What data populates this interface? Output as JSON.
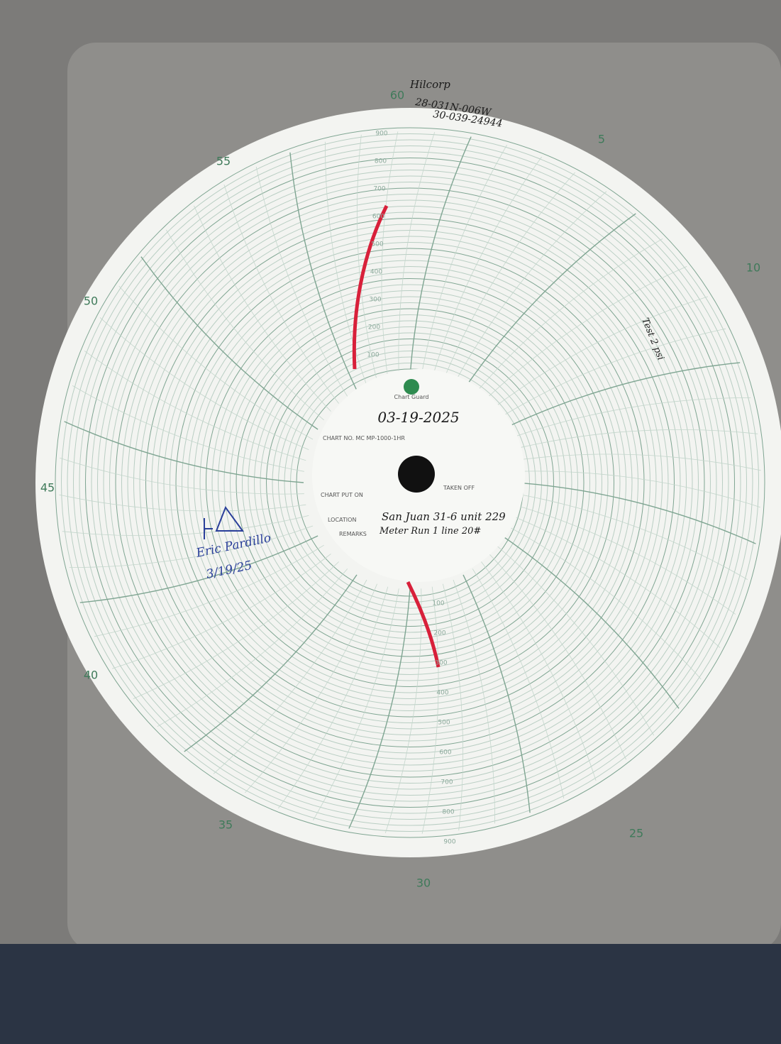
{
  "chart_paper": {
    "rim_labels": [
      "60",
      "5",
      "10",
      "25",
      "30",
      "35",
      "40",
      "45",
      "50",
      "55"
    ],
    "scale_labels": [
      "100",
      "200",
      "300",
      "400",
      "500",
      "600",
      "700",
      "800",
      "900"
    ],
    "header_notes": [
      "Hilcorp",
      "28-031N-006W",
      "30-039-24944"
    ],
    "center": {
      "brand": "Chart Guard",
      "date": "03-19-2025",
      "chart_no": "CHART NO. MC MP-1000-1HR",
      "put_on": "CHART PUT ON",
      "taken_off": "TAKEN OFF",
      "location_label": "LOCATION",
      "location": "San Juan 31-6 unit 229",
      "remarks_label": "REMARKS",
      "remarks": "Meter Run 1 line 20#"
    },
    "signature": {
      "name": "Eric Pardillo",
      "date": "3/19/25"
    },
    "side_note": "Test 2 psi"
  }
}
